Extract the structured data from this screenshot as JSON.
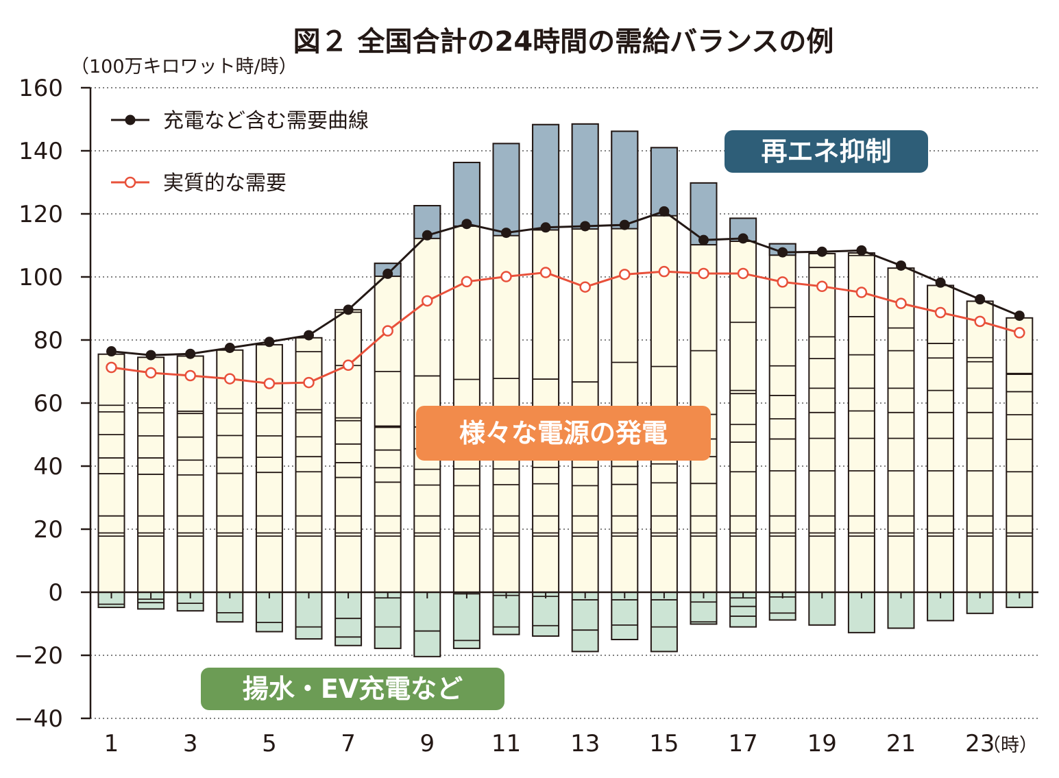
{
  "chart_data": {
    "type": "bar",
    "title": "図２ 全国合計の24時間の需給バランスの例",
    "ylabel": "（100万キロワット時/時）",
    "x_unit": "（時）",
    "ylim": [
      -40,
      160
    ],
    "yticks": [
      160,
      140,
      120,
      100,
      80,
      60,
      40,
      20,
      0,
      -20,
      -40
    ],
    "yticks_text": [
      "160",
      "140",
      "120",
      "100",
      "80",
      "60",
      "40",
      "20",
      "0",
      "−20",
      "−40"
    ],
    "xtick_labels": [
      {
        "hour": 1,
        "label": "1"
      },
      {
        "hour": 3,
        "label": "3"
      },
      {
        "hour": 5,
        "label": "5"
      },
      {
        "hour": 7,
        "label": "7"
      },
      {
        "hour": 9,
        "label": "9"
      },
      {
        "hour": 11,
        "label": "11"
      },
      {
        "hour": 13,
        "label": "13"
      },
      {
        "hour": 15,
        "label": "15"
      },
      {
        "hour": 17,
        "label": "17"
      },
      {
        "hour": 19,
        "label": "19"
      },
      {
        "hour": 21,
        "label": "21"
      },
      {
        "hour": 23,
        "label": "23"
      }
    ],
    "grid": "horizontal-dotted",
    "legend_position": "top-left",
    "hours": [
      1,
      2,
      3,
      4,
      5,
      6,
      7,
      8,
      9,
      10,
      11,
      12,
      13,
      14,
      15,
      16,
      17,
      18,
      19,
      20,
      21,
      22,
      23,
      24
    ],
    "generation_segments": [
      [
        17.8,
        18.8,
        24.2,
        37.6,
        42.6,
        50.0,
        57.2,
        59.3,
        75.5
      ],
      [
        17.8,
        18.8,
        24.2,
        37.4,
        42.6,
        49.6,
        56.9,
        58.5,
        74.5
      ],
      [
        17.8,
        18.8,
        24.2,
        37.2,
        41.9,
        49.2,
        56.7,
        57.4,
        74.9
      ],
      [
        17.8,
        18.8,
        24.2,
        37.7,
        42.7,
        49.7,
        56.8,
        58.2,
        76.8
      ],
      [
        17.8,
        18.8,
        24.2,
        38.0,
        42.8,
        49.6,
        56.9,
        58.3,
        78.5
      ],
      [
        17.8,
        18.8,
        24.2,
        38.2,
        43.0,
        49.3,
        56.9,
        57.9,
        76.3,
        80.7
      ],
      [
        17.8,
        18.8,
        24.2,
        36.4,
        41.1,
        47.0,
        54.4,
        55.3,
        71.9,
        88.8,
        89.6
      ],
      [
        17.8,
        18.8,
        24.2,
        34.9,
        39.5,
        45.1,
        52.3,
        52.7,
        70.0,
        100.2,
        104.3
      ],
      [
        17.8,
        18.8,
        24.2,
        34.0,
        39.0,
        45.5,
        52.4,
        68.6,
        112.2,
        122.6
      ],
      [
        17.8,
        18.8,
        24.2,
        33.8,
        39.1,
        45.6,
        52.4,
        67.5,
        116.1,
        136.3
      ],
      [
        17.8,
        18.8,
        24.2,
        34.1,
        39.1,
        45.6,
        52.4,
        67.8,
        113.1,
        142.3
      ],
      [
        17.8,
        18.8,
        24.2,
        34.4,
        39.6,
        45.6,
        52.4,
        67.6,
        114.9,
        148.3
      ],
      [
        17.8,
        18.8,
        24.2,
        33.8,
        39.6,
        45.6,
        52.4,
        66.7,
        115.2,
        148.5
      ],
      [
        17.8,
        18.8,
        24.2,
        34.2,
        39.9,
        46.3,
        52.4,
        72.9,
        115.3,
        146.2
      ],
      [
        17.8,
        18.8,
        24.2,
        34.7,
        40.7,
        46.6,
        52.4,
        71.6,
        119.4,
        141.0
      ],
      [
        17.8,
        18.8,
        24.2,
        34.5,
        43.0,
        48.6,
        56.4,
        76.6,
        110.2,
        129.8
      ],
      [
        17.8,
        18.8,
        24.2,
        38.2,
        47.6,
        53.2,
        63.0,
        64.0,
        85.6,
        111.3,
        118.6
      ],
      [
        17.8,
        18.8,
        24.2,
        38.5,
        48.6,
        55.0,
        62.4,
        71.8,
        90.3,
        106.9,
        110.5
      ],
      [
        17.8,
        18.8,
        24.2,
        38.5,
        48.8,
        57.0,
        64.7,
        74.1,
        81.0,
        103.0,
        107.4
      ],
      [
        17.8,
        18.8,
        24.2,
        38.5,
        48.8,
        57.5,
        64.7,
        75.3,
        87.4,
        106.8,
        107.6
      ],
      [
        17.8,
        18.8,
        24.2,
        38.5,
        48.8,
        57.0,
        64.7,
        76.6,
        83.8,
        102.8
      ],
      [
        17.8,
        18.8,
        24.2,
        38.5,
        48.8,
        57.0,
        64.0,
        74.3,
        78.9,
        97.3
      ],
      [
        17.8,
        18.8,
        24.2,
        38.5,
        48.8,
        57.0,
        64.7,
        73.1,
        74.4,
        92.3
      ],
      [
        17.8,
        18.8,
        24.2,
        38.2,
        48.5,
        56.3,
        63.6,
        69.1,
        69.4,
        87.0
      ]
    ],
    "curtailment_from": [
      null,
      null,
      null,
      null,
      null,
      null,
      null,
      100.2,
      112.2,
      116.1,
      113.1,
      114.9,
      115.2,
      115.3,
      119.4,
      110.2,
      111.3,
      106.9,
      null,
      null,
      null,
      null,
      null,
      null
    ],
    "charging_segments": [
      [
        -3.8,
        -4.8
      ],
      [
        -2.2,
        -3.3,
        -5.3
      ],
      [
        -3.5,
        -5.9
      ],
      [
        -6.5,
        -9.4
      ],
      [
        -9.6,
        -12.5
      ],
      [
        -11.0,
        -14.8
      ],
      [
        -8.3,
        -14.2,
        -16.9
      ],
      [
        -1.8,
        -11.0,
        -17.8
      ],
      [
        -12.3,
        -20.4
      ],
      [
        -0.5,
        -15.3,
        -17.8
      ],
      [
        -1.0,
        -11.0,
        -13.4
      ],
      [
        -1.3,
        -10.6,
        -13.9
      ],
      [
        -2.4,
        -12.0,
        -18.8
      ],
      [
        -2.4,
        -10.4,
        -15.0
      ],
      [
        -2.4,
        -11.0,
        -18.8
      ],
      [
        -3.1,
        -9.4,
        -10.1
      ],
      [
        -1.8,
        -4.5,
        -7.6,
        -11.0
      ],
      [
        -1.5,
        -6.6,
        -8.8
      ],
      [
        -10.4
      ],
      [
        -12.8
      ],
      [
        -11.4
      ],
      [
        -9.0
      ],
      [
        -6.7
      ],
      [
        -4.8
      ]
    ],
    "series": [
      {
        "name": "充電など含む需要曲線",
        "color": "#231815",
        "marker": "filled",
        "values": [
          76.4,
          75.2,
          75.6,
          77.5,
          79.4,
          81.5,
          89.6,
          101.0,
          113.2,
          116.8,
          114.0,
          115.7,
          116.1,
          116.5,
          120.8,
          111.7,
          112.2,
          107.8,
          108.0,
          108.4,
          103.6,
          98.2,
          92.9,
          87.7
        ]
      },
      {
        "name": "実質的な需要",
        "color": "#e8503a",
        "marker": "hollow",
        "values": [
          71.3,
          69.6,
          68.7,
          67.7,
          66.2,
          66.5,
          72.0,
          82.9,
          92.4,
          98.5,
          100.1,
          101.4,
          96.8,
          100.8,
          101.7,
          101.1,
          101.1,
          98.4,
          97.0,
          95.1,
          91.6,
          88.7,
          85.9,
          82.3
        ]
      }
    ],
    "annotations": [
      {
        "text": "再エネ抑制",
        "color": "#2e5e78"
      },
      {
        "text": "様々な電源の発電",
        "color": "#f28b4b"
      },
      {
        "text": "揚水・EV充電など",
        "color": "#6c9c55"
      }
    ],
    "colors": {
      "generation_fill": "#fefbe6",
      "curtailment_fill": "#9db4c4",
      "charging_fill": "#cce4d4",
      "axis": "#231815",
      "grid": "#555555"
    }
  }
}
